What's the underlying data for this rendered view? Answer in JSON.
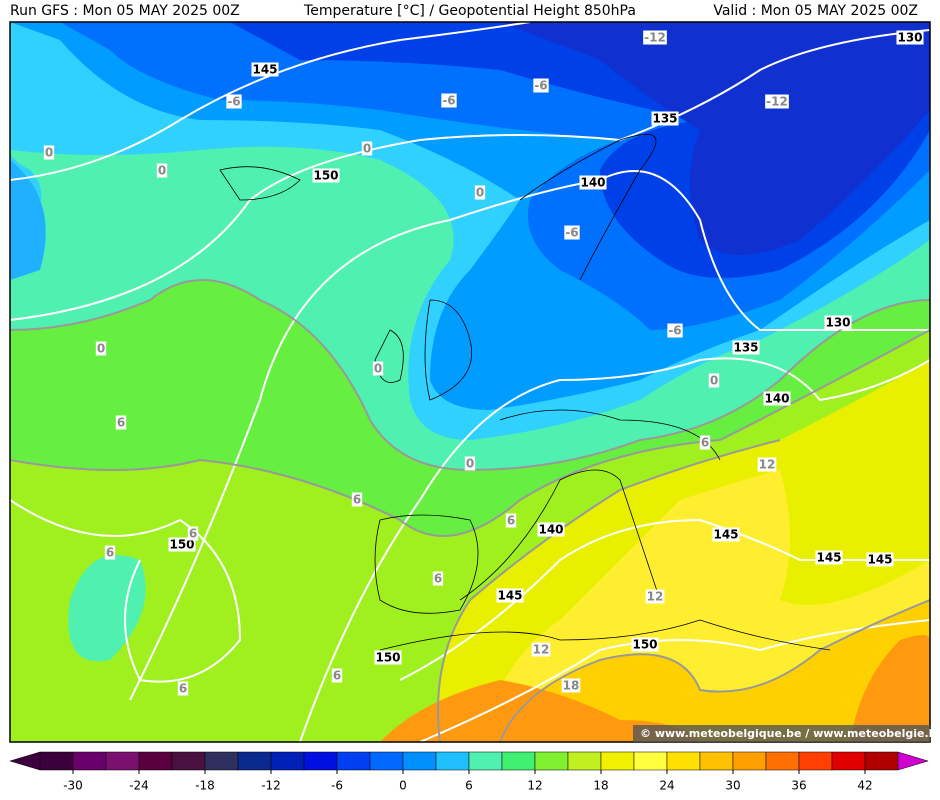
{
  "header": {
    "run": "Run GFS : Mon 05 MAY 2025 00Z",
    "title": "Temperature [°C] / Geopotential Height 850hPa",
    "valid": "Valid : Mon 05 MAY 2025 00Z"
  },
  "watermark": "© www.meteobelgique.be / www.meteobelgie.be",
  "height_labels": [
    "145",
    "150",
    "135",
    "140",
    "130",
    "130",
    "135",
    "140",
    "140",
    "145",
    "145",
    "145",
    "145",
    "150",
    "150",
    "150"
  ],
  "temperature_labels": [
    "-12",
    "-12",
    "-6",
    "-6",
    "-6",
    "-6",
    "-6",
    "0",
    "0",
    "0",
    "0",
    "0",
    "0",
    "0",
    "0",
    "6",
    "6",
    "6",
    "6",
    "6",
    "6",
    "6",
    "6",
    "6",
    "12",
    "12",
    "12",
    "18"
  ],
  "colorbar": {
    "colors": [
      "#3c003c",
      "#6a006a",
      "#7a1070",
      "#5a0040",
      "#4a1040",
      "#303060",
      "#0a2a90",
      "#0020b8",
      "#0010e0",
      "#0040f0",
      "#0068ff",
      "#0090ff",
      "#20c0ff",
      "#50f0b0",
      "#40f070",
      "#80f030",
      "#c0f020",
      "#f0f000",
      "#ffff40",
      "#ffe000",
      "#ffc000",
      "#ffa000",
      "#ff7000",
      "#ff4000",
      "#e00000",
      "#b00000"
    ],
    "ticks": [
      -30,
      -24,
      -18,
      -12,
      -6,
      0,
      6,
      12,
      18,
      24,
      30,
      36,
      42
    ],
    "tick_interval": 6,
    "step": 3,
    "min": -33
  }
}
